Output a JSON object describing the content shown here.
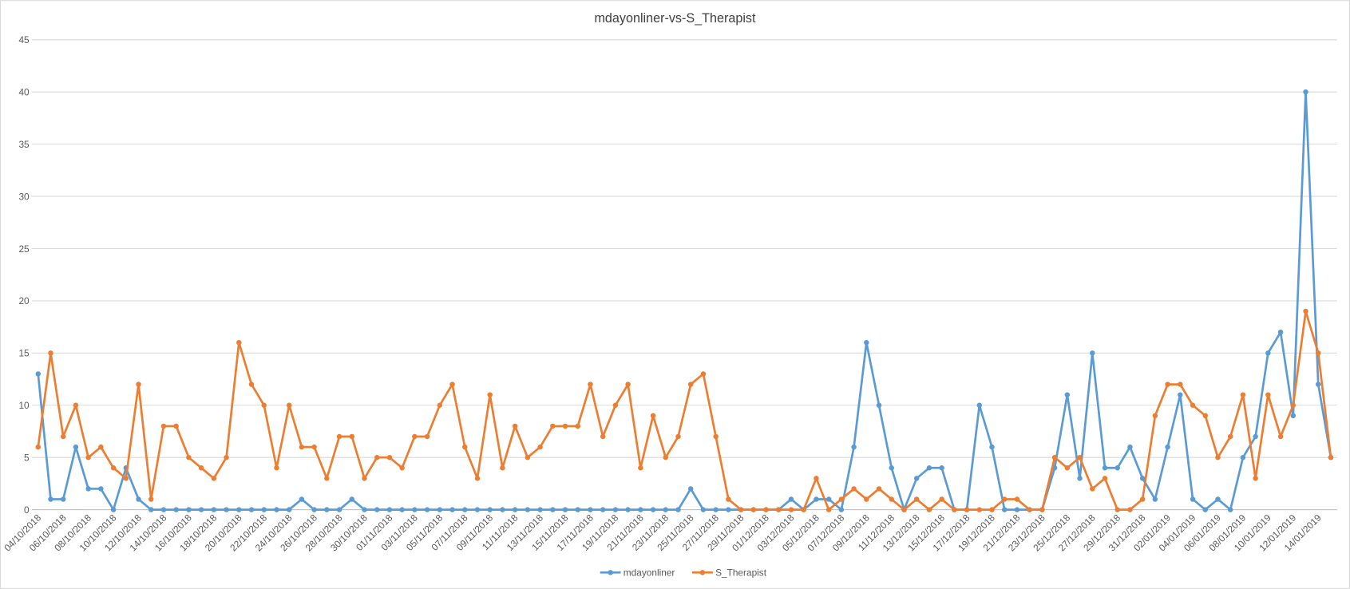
{
  "chart_data": {
    "type": "line",
    "title": "mdayonliner-vs-S_Therapist",
    "categories": [
      "04/10/2018",
      null,
      "06/10/2018",
      null,
      "08/10/2018",
      null,
      "10/10/2018",
      null,
      "12/10/2018",
      null,
      "14/10/2018",
      null,
      "16/10/2018",
      null,
      "18/10/2018",
      null,
      "20/10/2018",
      null,
      "22/10/2018",
      null,
      "24/10/2018",
      null,
      "26/10/2018",
      null,
      "28/10/2018",
      null,
      "30/10/2018",
      null,
      "01/11/2018",
      null,
      "03/11/2018",
      null,
      "05/11/2018",
      null,
      "07/11/2018",
      null,
      "09/11/2018",
      null,
      "11/11/2018",
      null,
      "13/11/2018",
      null,
      "15/11/2018",
      null,
      "17/11/2018",
      null,
      "19/11/2018",
      null,
      "21/11/2018",
      null,
      "23/11/2018",
      null,
      "25/11/2018",
      null,
      "27/11/2018",
      null,
      "29/11/2018",
      null,
      "01/12/2018",
      null,
      "03/12/2018",
      null,
      "05/12/2018",
      null,
      "07/12/2018",
      null,
      "09/12/2018",
      null,
      "11/12/2018",
      null,
      "13/12/2018",
      null,
      "15/12/2018",
      null,
      "17/12/2018",
      null,
      "19/12/2018",
      null,
      "21/12/2018",
      null,
      "23/12/2018",
      null,
      "25/12/2018",
      null,
      "27/12/2018",
      null,
      "29/12/2018",
      null,
      "31/12/2018",
      null,
      "02/01/2019",
      null,
      "04/01/2019",
      null,
      "06/01/2019",
      null,
      "08/01/2019",
      null,
      "10/01/2019",
      null,
      "12/01/2019",
      null,
      "14/01/2019",
      null
    ],
    "series": [
      {
        "name": "mdayonliner",
        "color": "#5b9bd5",
        "values": [
          13,
          1,
          1,
          6,
          2,
          2,
          0,
          4,
          1,
          0,
          0,
          0,
          0,
          0,
          0,
          0,
          0,
          0,
          0,
          0,
          0,
          1,
          0,
          0,
          0,
          1,
          0,
          0,
          0,
          0,
          0,
          0,
          0,
          0,
          0,
          0,
          0,
          0,
          0,
          0,
          0,
          0,
          0,
          0,
          0,
          0,
          0,
          0,
          0,
          0,
          0,
          0,
          2,
          0,
          0,
          0,
          0,
          0,
          0,
          0,
          1,
          0,
          1,
          1,
          0,
          6,
          16,
          10,
          4,
          0,
          3,
          4,
          4,
          0,
          0,
          10,
          6,
          0,
          0,
          0,
          0,
          4,
          11,
          3,
          15,
          4,
          4,
          6,
          3,
          1,
          6,
          11,
          1,
          0,
          1,
          0,
          5,
          7,
          15,
          17,
          9,
          40,
          12,
          5
        ]
      },
      {
        "name": "S_Therapist",
        "color": "#ed7d31",
        "values": [
          6,
          15,
          7,
          10,
          5,
          6,
          4,
          3,
          12,
          1,
          8,
          8,
          5,
          4,
          3,
          5,
          16,
          12,
          10,
          4,
          10,
          6,
          6,
          3,
          7,
          7,
          3,
          5,
          5,
          4,
          7,
          7,
          10,
          12,
          6,
          3,
          11,
          4,
          8,
          5,
          6,
          8,
          8,
          8,
          12,
          7,
          10,
          12,
          4,
          9,
          5,
          7,
          12,
          13,
          7,
          1,
          0,
          0,
          0,
          0,
          0,
          0,
          3,
          0,
          1,
          2,
          1,
          2,
          1,
          0,
          1,
          0,
          1,
          0,
          0,
          0,
          0,
          1,
          1,
          0,
          0,
          5,
          4,
          5,
          2,
          3,
          0,
          0,
          1,
          9,
          12,
          12,
          10,
          9,
          5,
          7,
          11,
          3,
          11,
          7,
          10,
          19,
          15,
          5
        ]
      }
    ],
    "ylim": [
      0,
      45
    ],
    "yticks": [
      0,
      5,
      10,
      15,
      20,
      25,
      30,
      35,
      40,
      45
    ],
    "grid": true,
    "legend": "bottom"
  }
}
